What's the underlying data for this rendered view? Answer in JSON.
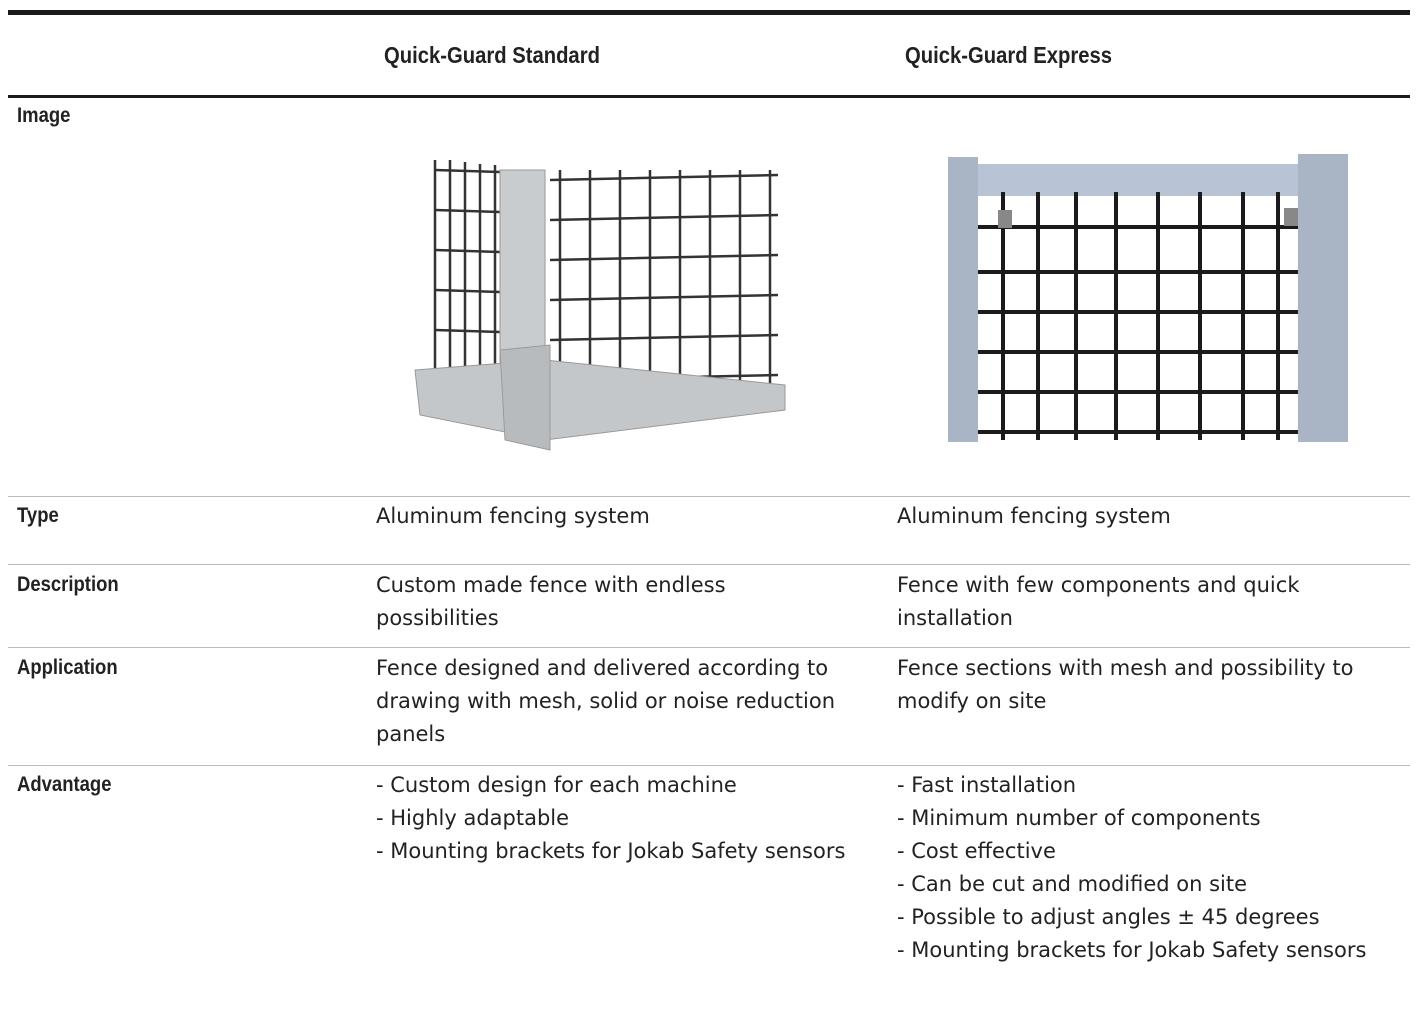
{
  "table": {
    "header": [
      "Quick-Guard Standard",
      "Quick-Guard Express"
    ],
    "rows": [
      {
        "label": "Image"
      },
      {
        "label": "Type",
        "cells": [
          "Aluminum fencing system",
          "Aluminum fencing system"
        ]
      },
      {
        "label": "Description",
        "cells": [
          "Custom made fence with endless possibilities",
          "Fence with few components and quick installation"
        ]
      },
      {
        "label": "Application",
        "cells": [
          "Fence designed and delivered according to drawing with mesh, solid or noise reduction panels",
          "Fence sections with mesh and possibility to modify on site"
        ]
      },
      {
        "label": "Advantage",
        "lists": [
          [
            "- Custom design for each machine",
            "- Highly adaptable",
            "- Mounting brackets for Jokab Safety sensors"
          ],
          [
            "- Fast installation",
            "- Minimum number of components",
            "- Cost effective",
            "- Can be cut and modified on site",
            "- Possible to adjust angles ± 45 degrees",
            "- Mounting brackets for Jokab Safety sensors"
          ]
        ]
      }
    ]
  }
}
